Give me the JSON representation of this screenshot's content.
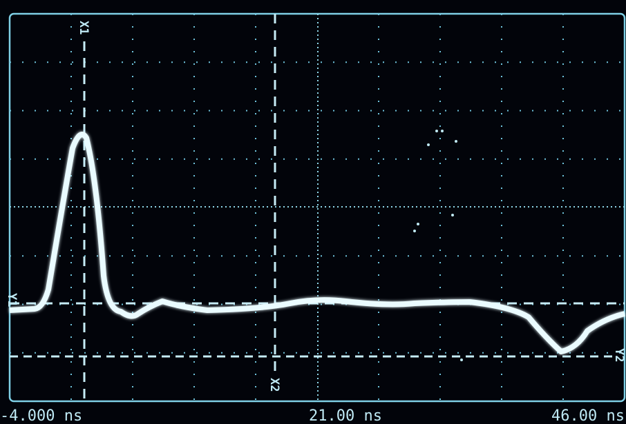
{
  "screen": {
    "time_labels": {
      "start": "-4.000 ns",
      "center": "21.00 ns",
      "end": "46.00 ns"
    },
    "cursor_labels": {
      "x1": "X1",
      "x2": "X2",
      "y1": "Y1",
      "y2": "Y2"
    }
  }
}
